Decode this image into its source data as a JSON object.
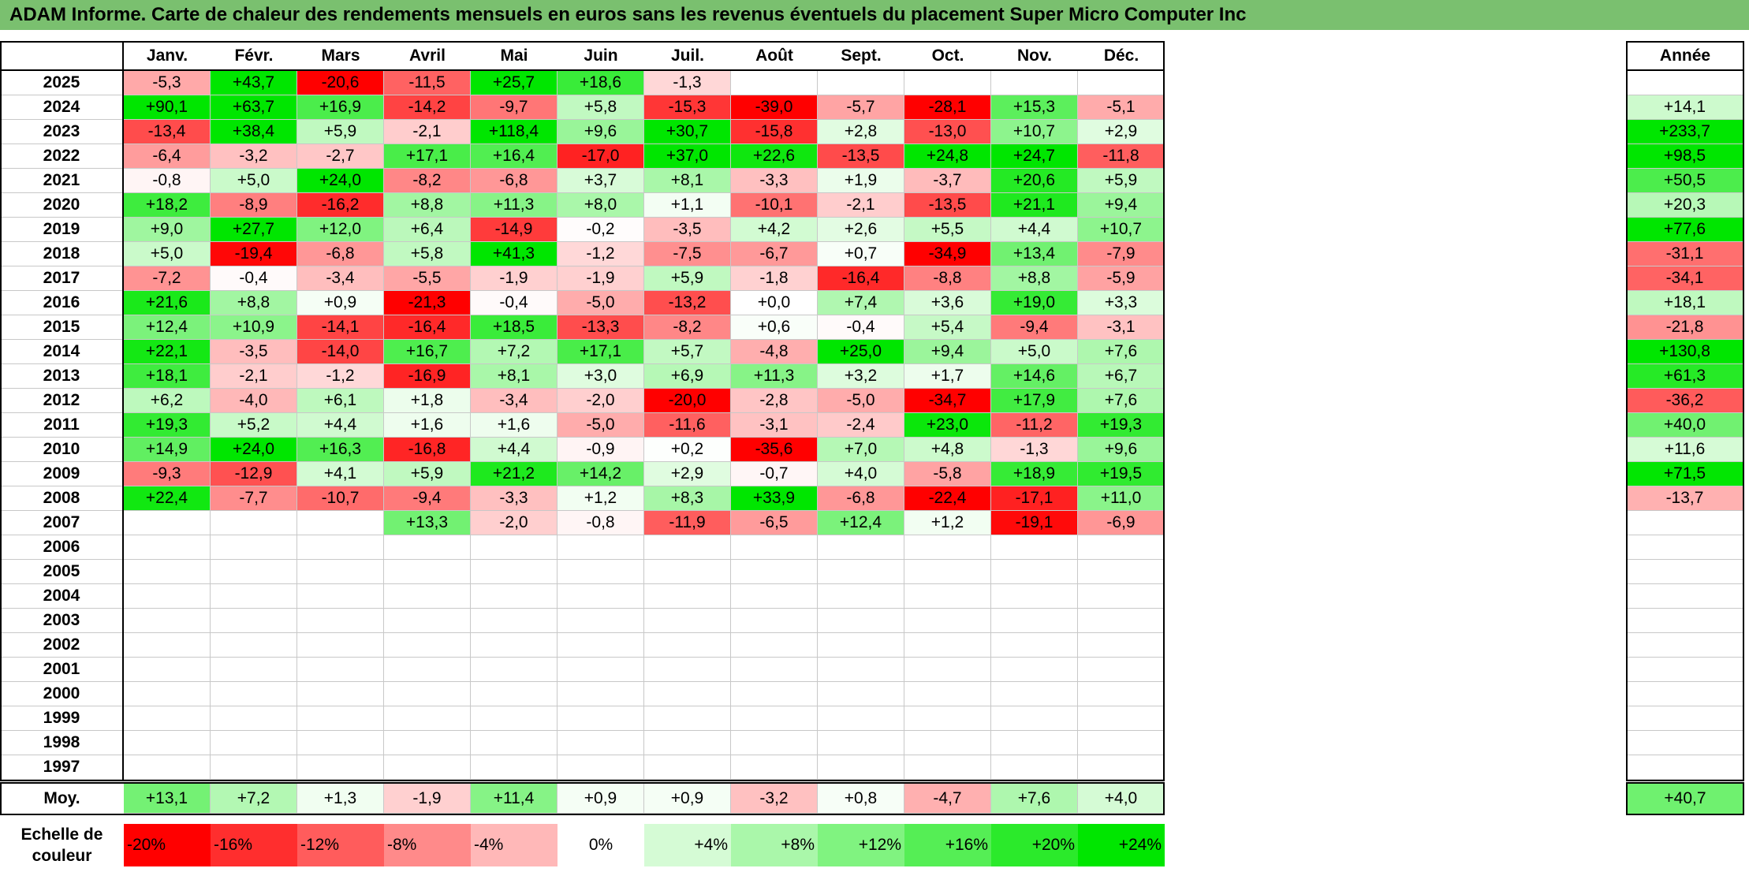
{
  "title": "ADAM Informe. Carte de chaleur des rendements mensuels en euros sans les revenus éventuels du placement Super Micro Computer Inc",
  "chart_data": {
    "type": "heatmap",
    "months": [
      "Janv.",
      "Févr.",
      "Mars",
      "Avril",
      "Mai",
      "Juin",
      "Juil.",
      "Août",
      "Sept.",
      "Oct.",
      "Nov.",
      "Déc."
    ],
    "year_column_label": "Année",
    "average_row_label": "Moy.",
    "rows": [
      {
        "year": "2025",
        "values": [
          "-5,3",
          "+43,7",
          "-20,6",
          "-11,5",
          "+25,7",
          "+18,6",
          "-1,3",
          "",
          "",
          "",
          "",
          ""
        ],
        "annual": ""
      },
      {
        "year": "2024",
        "values": [
          "+90,1",
          "+63,7",
          "+16,9",
          "-14,2",
          "-9,7",
          "+5,8",
          "-15,3",
          "-39,0",
          "-5,7",
          "-28,1",
          "+15,3",
          "-5,1"
        ],
        "annual": "+14,1"
      },
      {
        "year": "2023",
        "values": [
          "-13,4",
          "+38,4",
          "+5,9",
          "-2,1",
          "+118,4",
          "+9,6",
          "+30,7",
          "-15,8",
          "+2,8",
          "-13,0",
          "+10,7",
          "+2,9"
        ],
        "annual": "+233,7"
      },
      {
        "year": "2022",
        "values": [
          "-6,4",
          "-3,2",
          "-2,7",
          "+17,1",
          "+16,4",
          "-17,0",
          "+37,0",
          "+22,6",
          "-13,5",
          "+24,8",
          "+24,7",
          "-11,8"
        ],
        "annual": "+98,5"
      },
      {
        "year": "2021",
        "values": [
          "-0,8",
          "+5,0",
          "+24,0",
          "-8,2",
          "-6,8",
          "+3,7",
          "+8,1",
          "-3,3",
          "+1,9",
          "-3,7",
          "+20,6",
          "+5,9"
        ],
        "annual": "+50,5"
      },
      {
        "year": "2020",
        "values": [
          "+18,2",
          "-8,9",
          "-16,2",
          "+8,8",
          "+11,3",
          "+8,0",
          "+1,1",
          "-10,1",
          "-2,1",
          "-13,5",
          "+21,1",
          "+9,4"
        ],
        "annual": "+20,3"
      },
      {
        "year": "2019",
        "values": [
          "+9,0",
          "+27,7",
          "+12,0",
          "+6,4",
          "-14,9",
          "-0,2",
          "-3,5",
          "+4,2",
          "+2,6",
          "+5,5",
          "+4,4",
          "+10,7"
        ],
        "annual": "+77,6"
      },
      {
        "year": "2018",
        "values": [
          "+5,0",
          "-19,4",
          "-6,8",
          "+5,8",
          "+41,3",
          "-1,2",
          "-7,5",
          "-6,7",
          "+0,7",
          "-34,9",
          "+13,4",
          "-7,9"
        ],
        "annual": "-31,1"
      },
      {
        "year": "2017",
        "values": [
          "-7,2",
          "-0,4",
          "-3,4",
          "-5,5",
          "-1,9",
          "-1,9",
          "+5,9",
          "-1,8",
          "-16,4",
          "-8,8",
          "+8,8",
          "-5,9"
        ],
        "annual": "-34,1"
      },
      {
        "year": "2016",
        "values": [
          "+21,6",
          "+8,8",
          "+0,9",
          "-21,3",
          "-0,4",
          "-5,0",
          "-13,2",
          "+0,0",
          "+7,4",
          "+3,6",
          "+19,0",
          "+3,3"
        ],
        "annual": "+18,1"
      },
      {
        "year": "2015",
        "values": [
          "+12,4",
          "+10,9",
          "-14,1",
          "-16,4",
          "+18,5",
          "-13,3",
          "-8,2",
          "+0,6",
          "-0,4",
          "+5,4",
          "-9,4",
          "-3,1"
        ],
        "annual": "-21,8"
      },
      {
        "year": "2014",
        "values": [
          "+22,1",
          "-3,5",
          "-14,0",
          "+16,7",
          "+7,2",
          "+17,1",
          "+5,7",
          "-4,8",
          "+25,0",
          "+9,4",
          "+5,0",
          "+7,6"
        ],
        "annual": "+130,8"
      },
      {
        "year": "2013",
        "values": [
          "+18,1",
          "-2,1",
          "-1,2",
          "-16,9",
          "+8,1",
          "+3,0",
          "+6,9",
          "+11,3",
          "+3,2",
          "+1,7",
          "+14,6",
          "+6,7"
        ],
        "annual": "+61,3"
      },
      {
        "year": "2012",
        "values": [
          "+6,2",
          "-4,0",
          "+6,1",
          "+1,8",
          "-3,4",
          "-2,0",
          "-20,0",
          "-2,8",
          "-5,0",
          "-34,7",
          "+17,9",
          "+7,6"
        ],
        "annual": "-36,2"
      },
      {
        "year": "2011",
        "values": [
          "+19,3",
          "+5,2",
          "+4,4",
          "+1,6",
          "+1,6",
          "-5,0",
          "-11,6",
          "-3,1",
          "-2,4",
          "+23,0",
          "-11,2",
          "+19,3"
        ],
        "annual": "+40,0"
      },
      {
        "year": "2010",
        "values": [
          "+14,9",
          "+24,0",
          "+16,3",
          "-16,8",
          "+4,4",
          "-0,9",
          "+0,2",
          "-35,6",
          "+7,0",
          "+4,8",
          "-1,3",
          "+9,6"
        ],
        "annual": "+11,6"
      },
      {
        "year": "2009",
        "values": [
          "-9,3",
          "-12,9",
          "+4,1",
          "+5,9",
          "+21,2",
          "+14,2",
          "+2,9",
          "-0,7",
          "+4,0",
          "-5,8",
          "+18,9",
          "+19,5"
        ],
        "annual": "+71,5"
      },
      {
        "year": "2008",
        "values": [
          "+22,4",
          "-7,7",
          "-10,7",
          "-9,4",
          "-3,3",
          "+1,2",
          "+8,3",
          "+33,9",
          "-6,8",
          "-22,4",
          "-17,1",
          "+11,0"
        ],
        "annual": "-13,7"
      },
      {
        "year": "2007",
        "values": [
          "",
          "",
          "",
          "+13,3",
          "-2,0",
          "-0,8",
          "-11,9",
          "-6,5",
          "+12,4",
          "+1,2",
          "-19,1",
          "-6,9"
        ],
        "annual": ""
      },
      {
        "year": "2006",
        "values": [
          "",
          "",
          "",
          "",
          "",
          "",
          "",
          "",
          "",
          "",
          "",
          ""
        ],
        "annual": ""
      },
      {
        "year": "2005",
        "values": [
          "",
          "",
          "",
          "",
          "",
          "",
          "",
          "",
          "",
          "",
          "",
          ""
        ],
        "annual": ""
      },
      {
        "year": "2004",
        "values": [
          "",
          "",
          "",
          "",
          "",
          "",
          "",
          "",
          "",
          "",
          "",
          ""
        ],
        "annual": ""
      },
      {
        "year": "2003",
        "values": [
          "",
          "",
          "",
          "",
          "",
          "",
          "",
          "",
          "",
          "",
          "",
          ""
        ],
        "annual": ""
      },
      {
        "year": "2002",
        "values": [
          "",
          "",
          "",
          "",
          "",
          "",
          "",
          "",
          "",
          "",
          "",
          ""
        ],
        "annual": ""
      },
      {
        "year": "2001",
        "values": [
          "",
          "",
          "",
          "",
          "",
          "",
          "",
          "",
          "",
          "",
          "",
          ""
        ],
        "annual": ""
      },
      {
        "year": "2000",
        "values": [
          "",
          "",
          "",
          "",
          "",
          "",
          "",
          "",
          "",
          "",
          "",
          ""
        ],
        "annual": ""
      },
      {
        "year": "1999",
        "values": [
          "",
          "",
          "",
          "",
          "",
          "",
          "",
          "",
          "",
          "",
          "",
          ""
        ],
        "annual": ""
      },
      {
        "year": "1998",
        "values": [
          "",
          "",
          "",
          "",
          "",
          "",
          "",
          "",
          "",
          "",
          "",
          ""
        ],
        "annual": ""
      },
      {
        "year": "1997",
        "values": [
          "",
          "",
          "",
          "",
          "",
          "",
          "",
          "",
          "",
          "",
          "",
          ""
        ],
        "annual": ""
      }
    ],
    "average": {
      "values": [
        "+13,1",
        "+7,2",
        "+1,3",
        "-1,9",
        "+11,4",
        "+0,9",
        "+0,9",
        "-3,2",
        "+0,8",
        "-4,7",
        "+7,6",
        "+4,0"
      ],
      "annual": "+40,7"
    },
    "color_scale": {
      "label": "Echelle de couleur",
      "stops": [
        "-20%",
        "-16%",
        "-12%",
        "-8%",
        "-4%",
        "0%",
        "+4%",
        "+8%",
        "+12%",
        "+16%",
        "+20%",
        "+24%"
      ],
      "negative_color": "#ff0000",
      "positive_color": "#00e600",
      "neutral_color": "#ffffff"
    }
  }
}
